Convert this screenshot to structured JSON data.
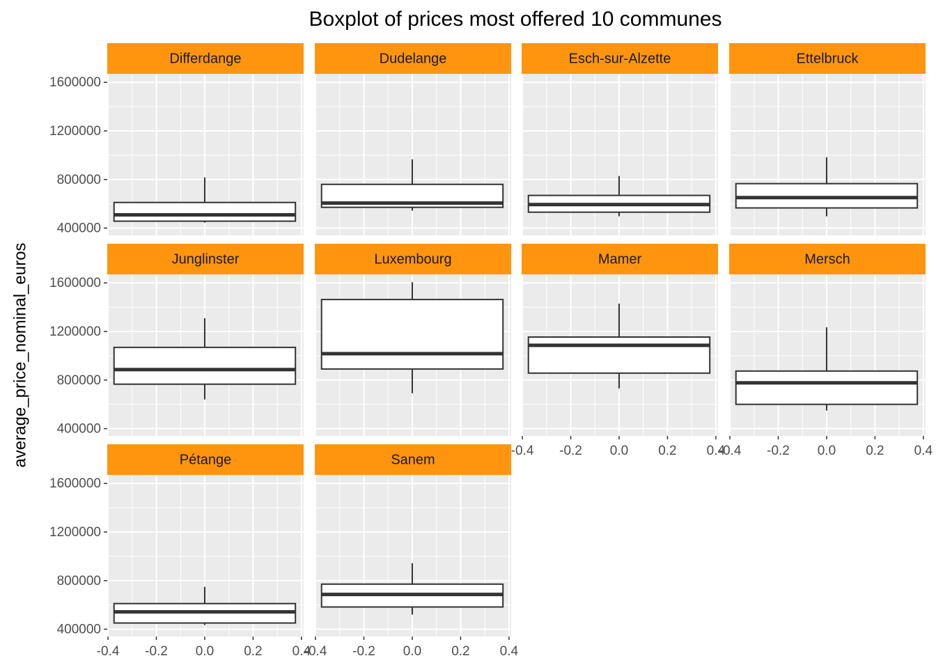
{
  "chart_data": {
    "type": "boxplot",
    "title": "Boxplot of prices most offered 10 communes",
    "y_label": "average_price_nominal_euros",
    "categories": [
      "Differdange",
      "Dudelange",
      "Esch-sur-Alzette",
      "Ettelbruck",
      "Junglinster",
      "Luxembourg",
      "Mamer",
      "Mersch",
      "Pétange",
      "Sanem"
    ],
    "min": [
      445000,
      543000,
      497000,
      497000,
      640000,
      691000,
      731000,
      549000,
      434000,
      520000
    ],
    "q1": [
      457000,
      571000,
      531000,
      566000,
      766000,
      891000,
      857000,
      600000,
      451000,
      583000
    ],
    "median": [
      509000,
      606000,
      594000,
      651000,
      886000,
      1017000,
      1086000,
      777000,
      543000,
      686000
    ],
    "q3": [
      611000,
      760000,
      669000,
      766000,
      1069000,
      1463000,
      1154000,
      874000,
      611000,
      771000
    ],
    "max": [
      817000,
      966000,
      829000,
      983000,
      1309000,
      1606000,
      1429000,
      1234000,
      749000,
      943000
    ],
    "ylim": [
      340000,
      1670000
    ],
    "yticks": [
      400000,
      800000,
      1200000,
      1600000
    ],
    "xlim": [
      -0.403,
      0.409
    ],
    "xticks": [
      -0.4,
      -0.2,
      {
        "value": 0,
        "label": "0.0"
      },
      0.2,
      0.4
    ],
    "grid": true,
    "strip_color": "#ff950e",
    "panel_color": "#ebebeb",
    "box_fill": "#ffffff",
    "box_stroke": "#333333"
  }
}
